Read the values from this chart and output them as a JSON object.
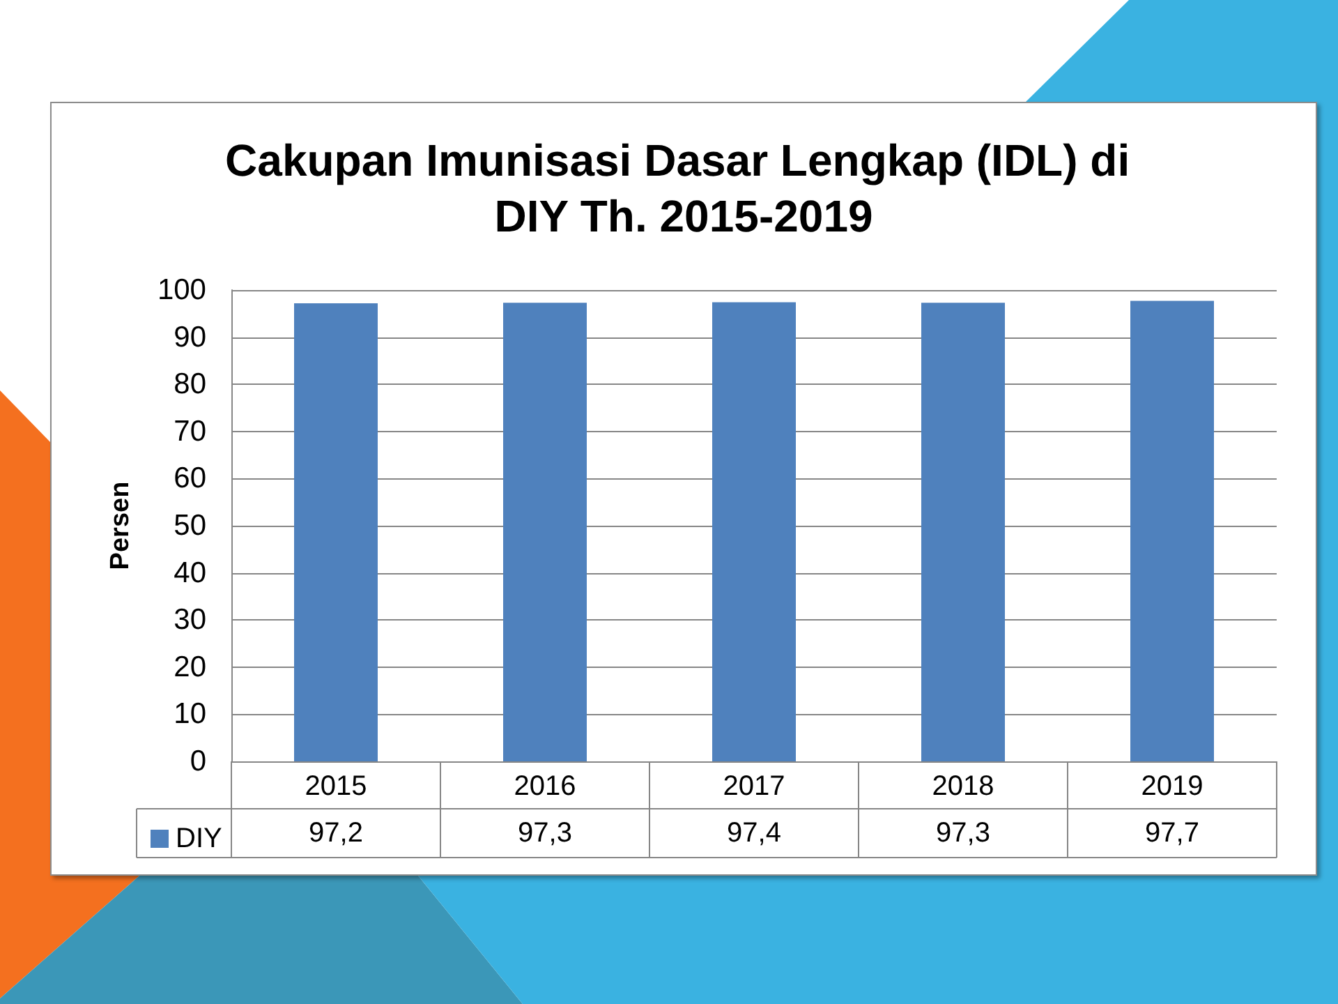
{
  "chart_data": {
    "type": "bar",
    "title": "Cakupan Imunisasi Dasar Lengkap (IDL) di DIY Th. 2015-2019",
    "ylabel": "Persen",
    "categories": [
      "2015",
      "2016",
      "2017",
      "2018",
      "2019"
    ],
    "series": [
      {
        "name": "DIY",
        "color": "#4f81bd",
        "values": [
          97.2,
          97.3,
          97.4,
          97.3,
          97.7
        ],
        "value_labels": [
          "97,2",
          "97,3",
          "97,4",
          "97,3",
          "97,7"
        ]
      }
    ],
    "ylim": [
      0,
      100
    ],
    "yticks": [
      0,
      10,
      20,
      30,
      40,
      50,
      60,
      70,
      80,
      90,
      100
    ],
    "grid": "y",
    "legend": "bottom left"
  }
}
